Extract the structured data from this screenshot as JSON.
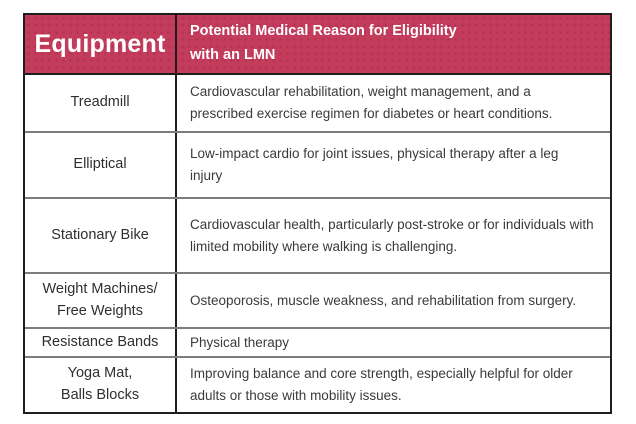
{
  "colors": {
    "header_bg": "#c43c5c",
    "header_text": "#ffffff",
    "body_text": "#3a3a3a",
    "outer_border": "#1e1e1e",
    "row_divider": "#7d7d7d"
  },
  "table": {
    "header": {
      "equipment_label": "Equipment",
      "reason_label": "Potential Medical Reason for Eligibility\nwith an LMN"
    },
    "rows": [
      {
        "equipment": "Treadmill",
        "reason": "Cardiovascular rehabilitation, weight management, and a prescribed exercise regimen for diabetes or heart conditions."
      },
      {
        "equipment": "Elliptical",
        "reason": "Low-impact cardio for joint issues, physical therapy after a leg injury"
      },
      {
        "equipment": "Stationary Bike",
        "reason": "Cardiovascular health, particularly post-stroke or for individuals with limited mobility where walking is challenging."
      },
      {
        "equipment": "Weight Machines/\nFree Weights",
        "reason": "Osteoporosis, muscle weakness, and rehabilitation from surgery."
      },
      {
        "equipment": "Resistance Bands",
        "reason": "Physical therapy"
      },
      {
        "equipment": "Yoga Mat,\nBalls Blocks",
        "reason": "Improving balance and core strength, especially helpful for older adults or those with mobility issues."
      }
    ]
  }
}
